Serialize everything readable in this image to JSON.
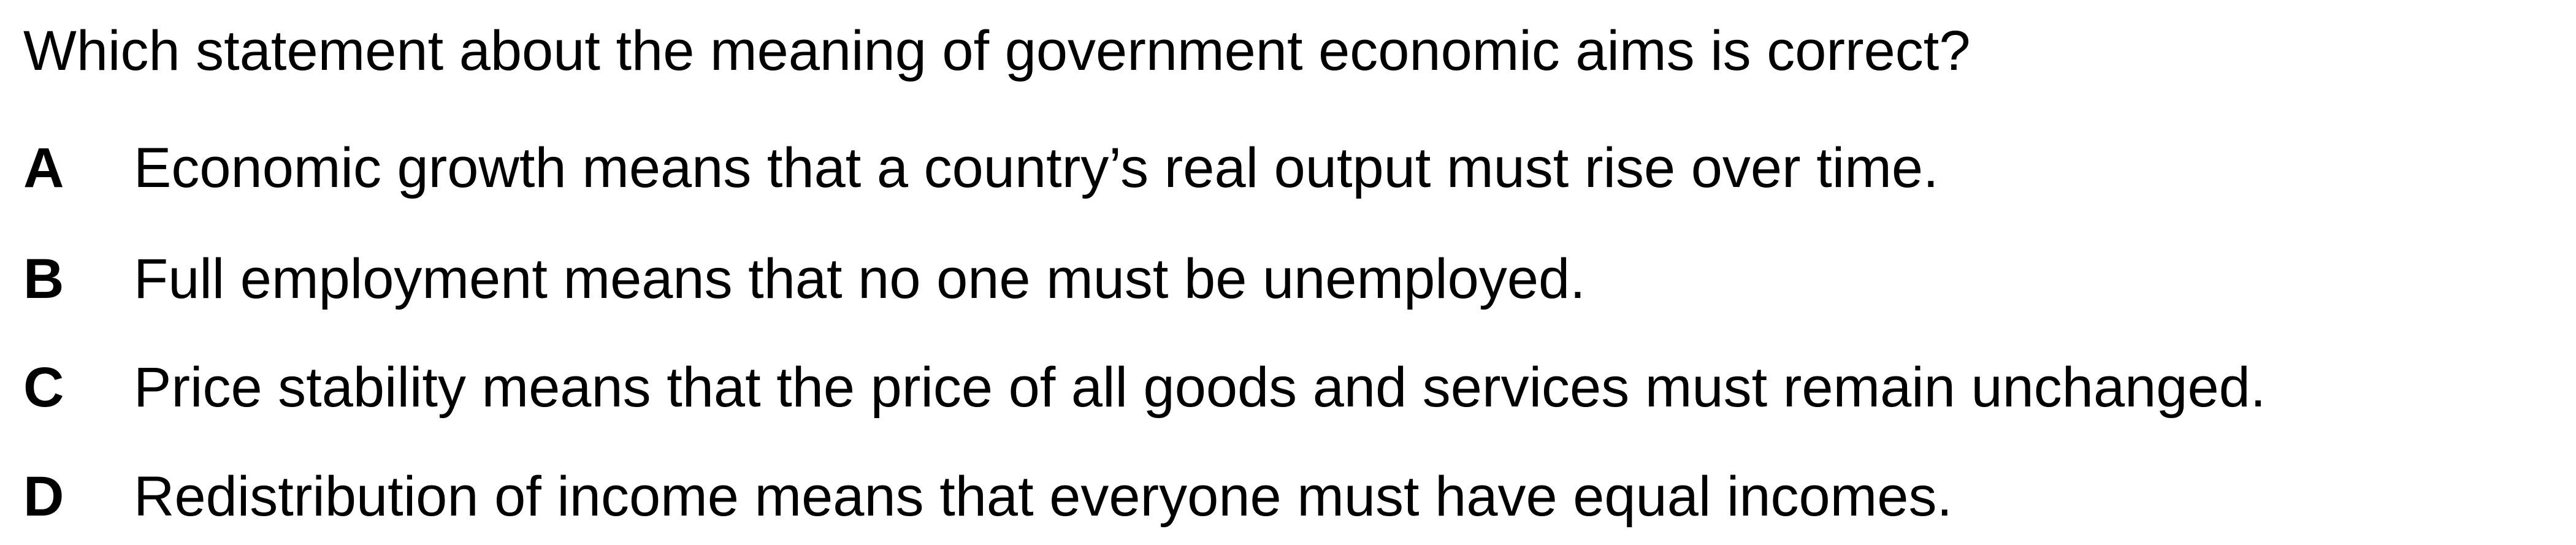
{
  "question": "Which statement about the meaning of government economic aims is correct?",
  "options": [
    {
      "letter": "A",
      "text": "Economic growth means that a country’s real output must rise over time."
    },
    {
      "letter": "B",
      "text": "Full employment means that no one must be unemployed."
    },
    {
      "letter": "C",
      "text": "Price stability means that the price of all goods and services must remain unchanged."
    },
    {
      "letter": "D",
      "text": "Redistribution of income means that everyone must have equal incomes."
    }
  ]
}
